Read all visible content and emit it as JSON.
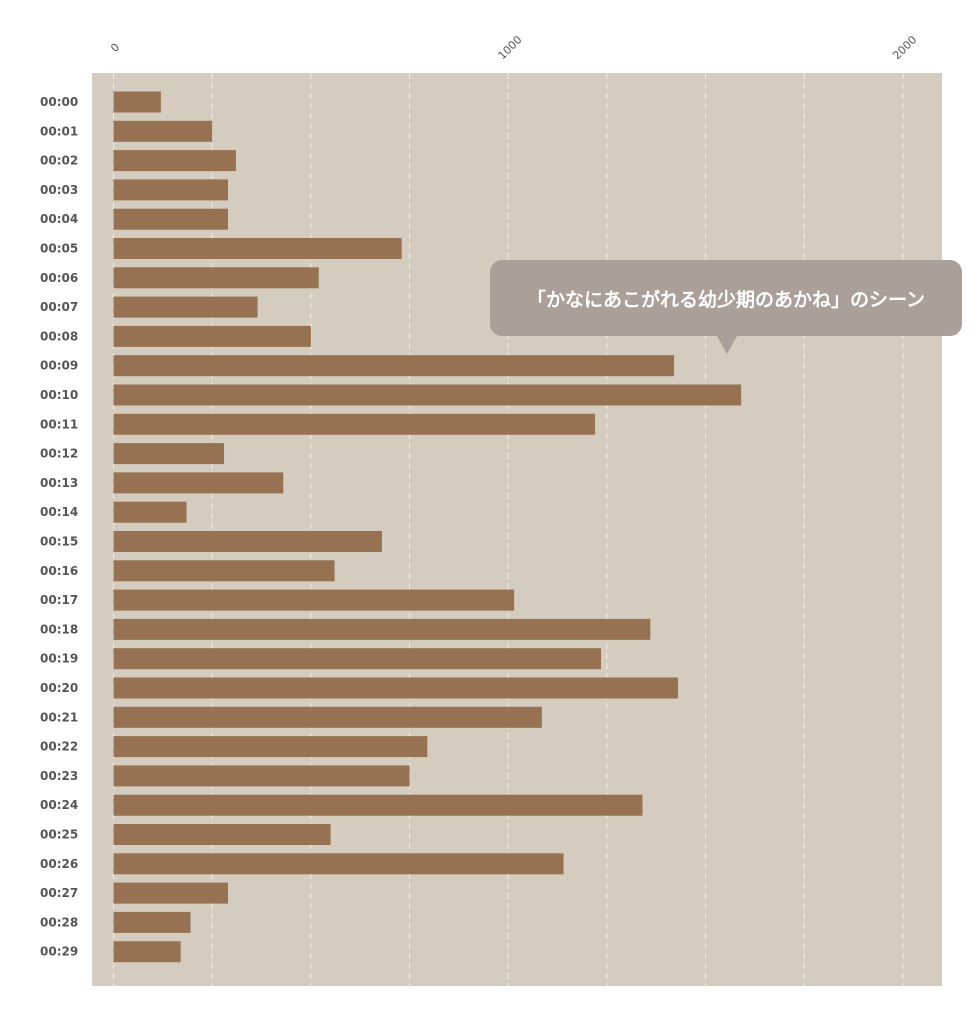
{
  "chart_data": {
    "type": "bar",
    "orientation": "horizontal",
    "categories": [
      "00:00",
      "00:01",
      "00:02",
      "00:03",
      "00:04",
      "00:05",
      "00:06",
      "00:07",
      "00:08",
      "00:09",
      "00:10",
      "00:11",
      "00:12",
      "00:13",
      "00:14",
      "00:15",
      "00:16",
      "00:17",
      "00:18",
      "00:19",
      "00:20",
      "00:21",
      "00:22",
      "00:23",
      "00:24",
      "00:25",
      "00:26",
      "00:27",
      "00:28",
      "00:29"
    ],
    "values": [
      120,
      250,
      310,
      290,
      290,
      730,
      520,
      365,
      500,
      1420,
      1590,
      1220,
      280,
      430,
      185,
      680,
      560,
      1015,
      1360,
      1235,
      1430,
      1085,
      795,
      750,
      1340,
      550,
      1140,
      290,
      195,
      170
    ],
    "xlim": [
      0,
      2100
    ],
    "x_ticks": [
      0,
      1000,
      2000
    ],
    "x_tick_labels": [
      "0",
      "1000",
      "2000"
    ],
    "axis_position": "top",
    "grid": true,
    "title": "",
    "xlabel": "",
    "ylabel": "",
    "annotation": {
      "text": "「かなにあこがれる幼少期のあかね」のシーン",
      "category": "00:09"
    },
    "colors": {
      "bar": "#967152",
      "background": "#d4ccbf",
      "grid": "#f2ede4",
      "tooltip": "#ab9f99"
    }
  }
}
